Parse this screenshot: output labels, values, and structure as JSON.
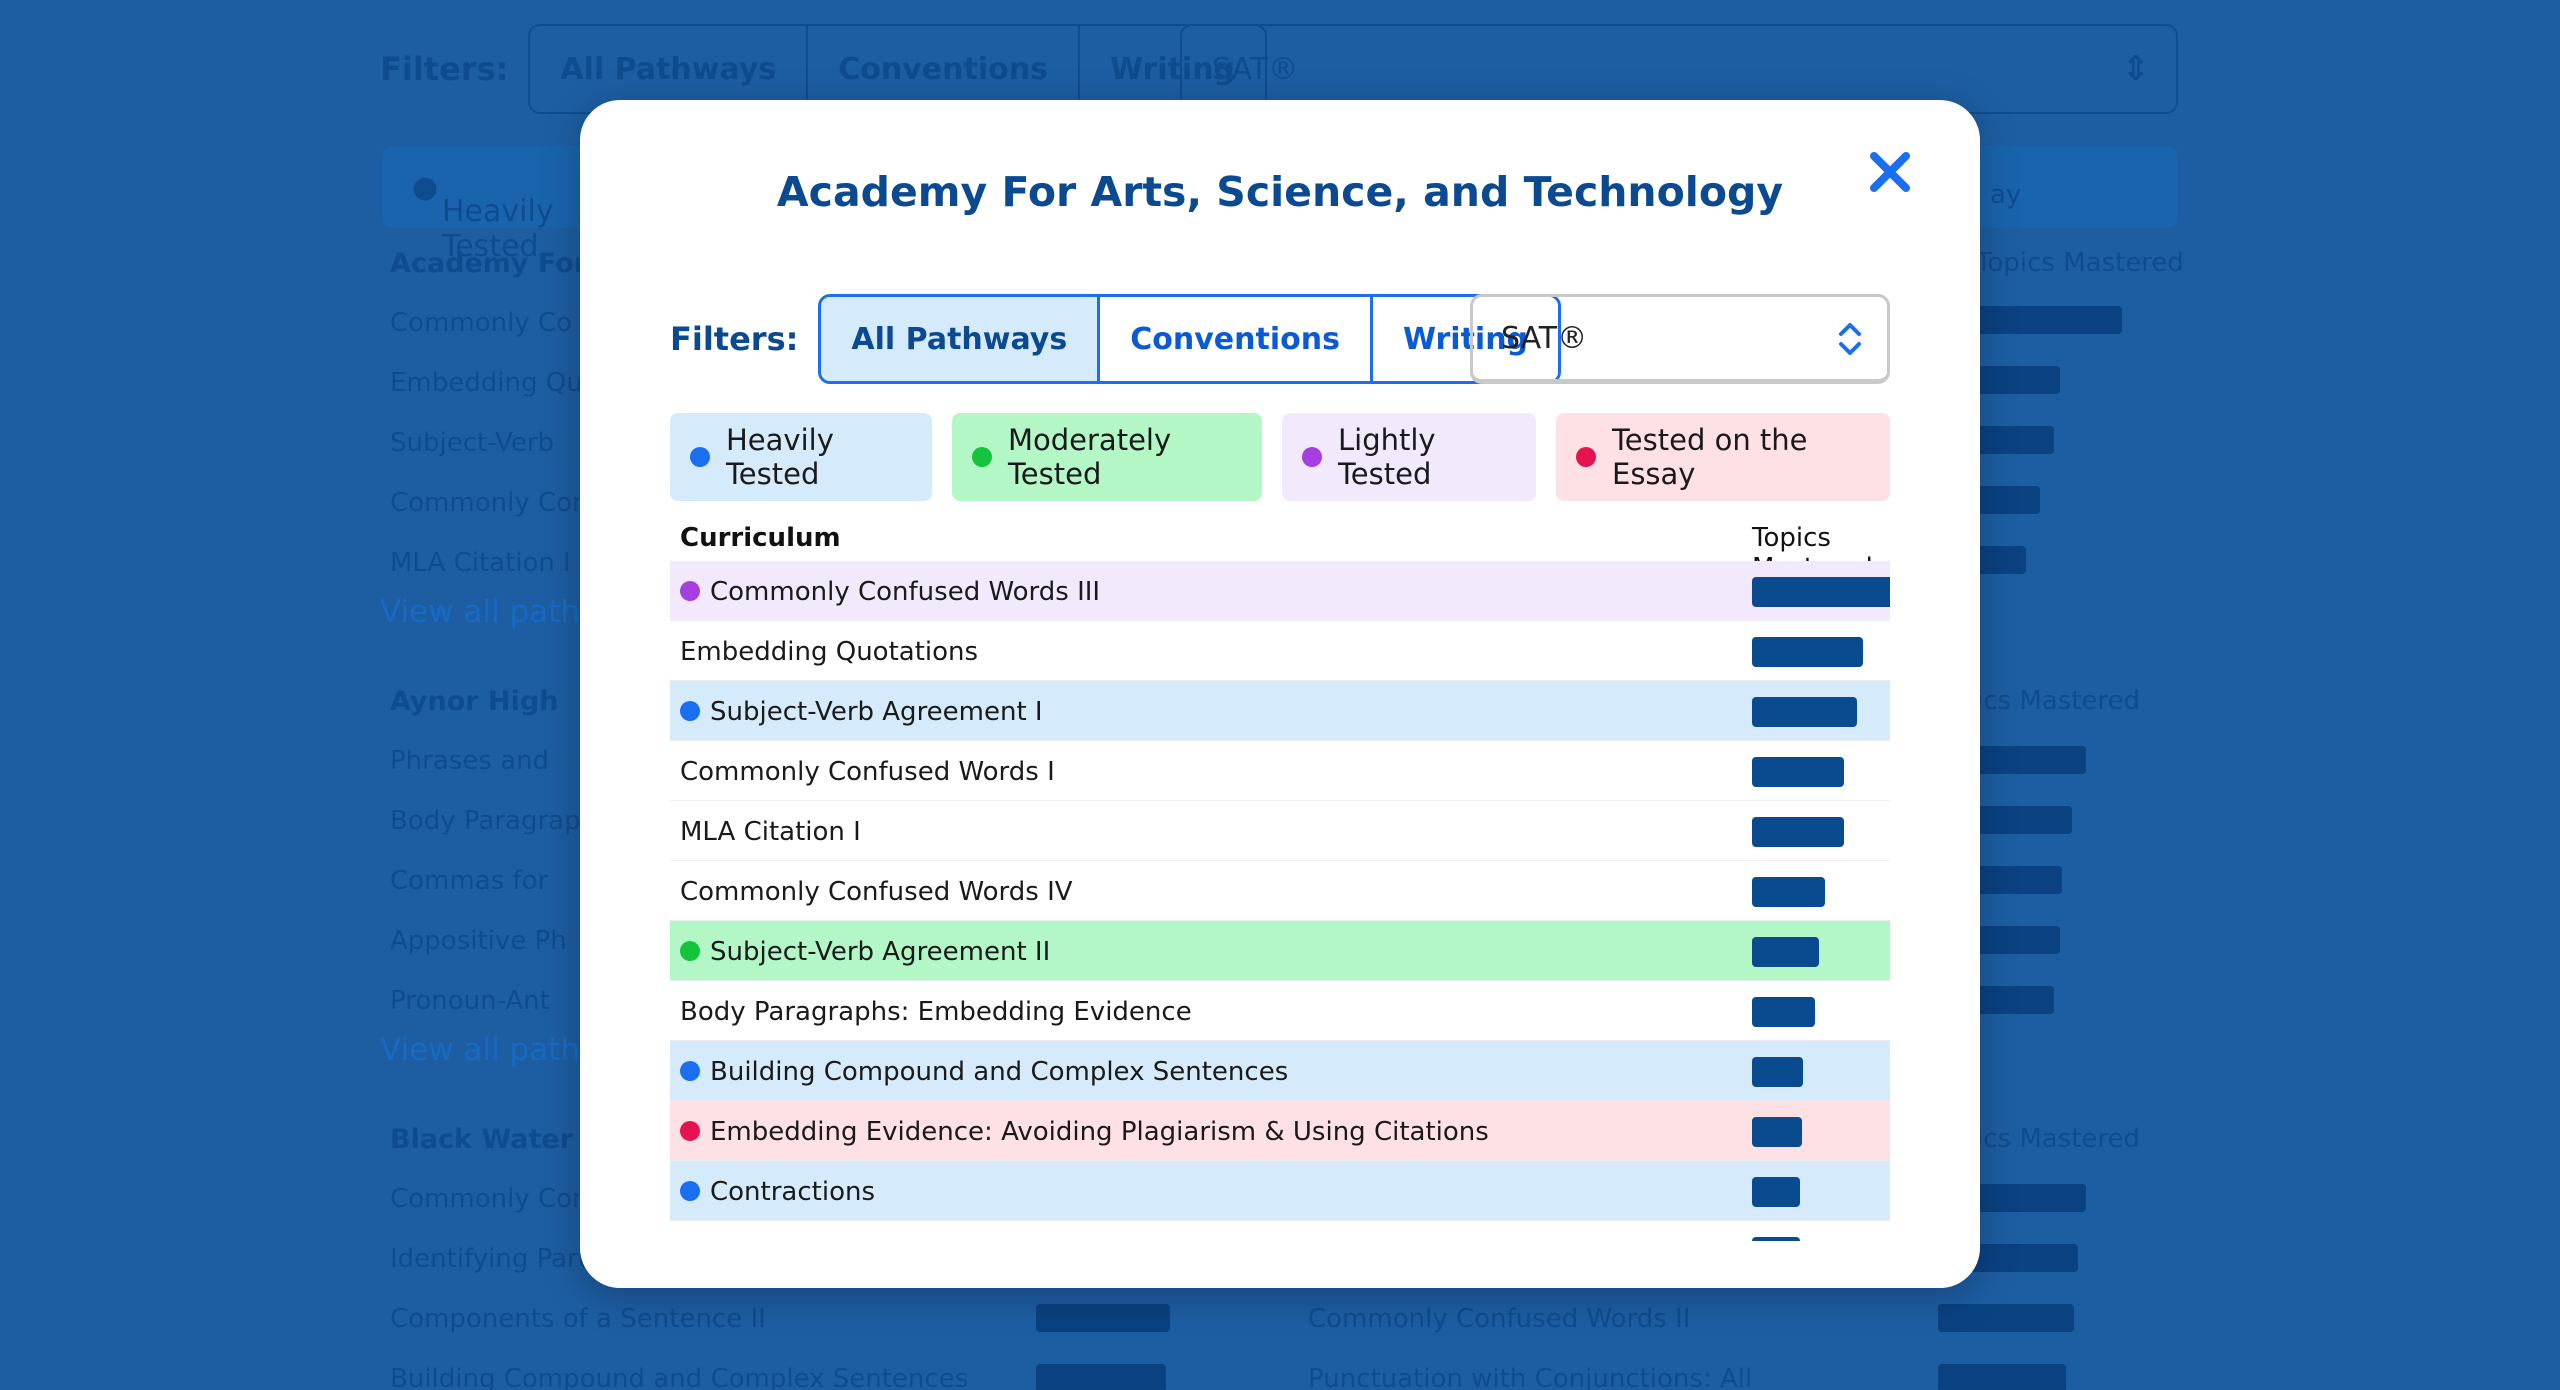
{
  "background": {
    "filters_label": "Filters:",
    "tabs": [
      "All Pathways",
      "Conventions",
      "Writing"
    ],
    "select_value": "SAT®",
    "legend_first": "Heavily Tested",
    "legend_last": "Tested on the Essay",
    "topics_mastered": "Topics Mastered",
    "view_all": "View all pathw",
    "schools": [
      {
        "name": "Academy For A",
        "rows": [
          "Commonly Co",
          "Embedding Qu",
          "Subject-Verb",
          "Commonly Conf",
          "MLA Citation I"
        ]
      },
      {
        "name": "Aynor High",
        "rows": [
          "Phrases and",
          "Body Paragraph",
          "Commas for",
          "Appositive Ph",
          "Pronoun-Ant"
        ]
      },
      {
        "name": "Black Water Mi",
        "rows": [
          "Commonly Conf",
          "Identifying Part",
          "Components of a Sentence II",
          "Building Compound and Complex Sentences"
        ]
      }
    ],
    "mid_rows": [
      "Commonly Confused Words II",
      "Punctuation with Conjunctions: All"
    ],
    "topics_mastered_short": "ics Mastered",
    "topics_mastered_first": "Topics Mastered",
    "right_label_top": "ay",
    "view_suffix": "Vi"
  },
  "modal": {
    "title": "Academy For Arts, Science, and Technology",
    "filters_label": "Filters:",
    "tabs": [
      {
        "label": "All Pathways",
        "active": true
      },
      {
        "label": "Conventions",
        "active": false
      },
      {
        "label": "Writing",
        "active": false
      }
    ],
    "select_value": "SAT®",
    "legend": [
      {
        "label": "Heavily Tested",
        "dot": "#1a6ff0",
        "bg": "#d5ebfb"
      },
      {
        "label": "Moderately Tested",
        "dot": "#14c43c",
        "bg": "#b3f7c6"
      },
      {
        "label": "Lightly Tested",
        "dot": "#a53fe0",
        "bg": "#f3e9fc"
      },
      {
        "label": "Tested on the Essay",
        "dot": "#e5134f",
        "bg": "#fde1e5"
      }
    ],
    "table": {
      "col_curriculum": "Curriculum",
      "col_topics": "Topics Mastered",
      "rows": [
        {
          "label": "Commonly Confused Words III",
          "level": "light",
          "mastered": 1.0
        },
        {
          "label": "Embedding Quotations",
          "level": "none",
          "mastered": 0.76
        },
        {
          "label": "Subject-Verb Agreement I",
          "level": "heavy",
          "mastered": 0.72
        },
        {
          "label": "Commonly Confused Words I",
          "level": "none",
          "mastered": 0.63
        },
        {
          "label": "MLA Citation I",
          "level": "none",
          "mastered": 0.63
        },
        {
          "label": "Commonly Confused Words IV",
          "level": "none",
          "mastered": 0.5
        },
        {
          "label": "Subject-Verb Agreement II",
          "level": "moderate",
          "mastered": 0.46
        },
        {
          "label": "Body Paragraphs: Embedding Evidence",
          "level": "none",
          "mastered": 0.43
        },
        {
          "label": "Building Compound and Complex Sentences",
          "level": "heavy",
          "mastered": 0.35
        },
        {
          "label": "Embedding Evidence: Avoiding Plagiarism & Using Citations",
          "level": "essay",
          "mastered": 0.34
        },
        {
          "label": "Contractions",
          "level": "heavy",
          "mastered": 0.33
        },
        {
          "label": "",
          "level": "none",
          "mastered": 0.33
        }
      ]
    }
  }
}
